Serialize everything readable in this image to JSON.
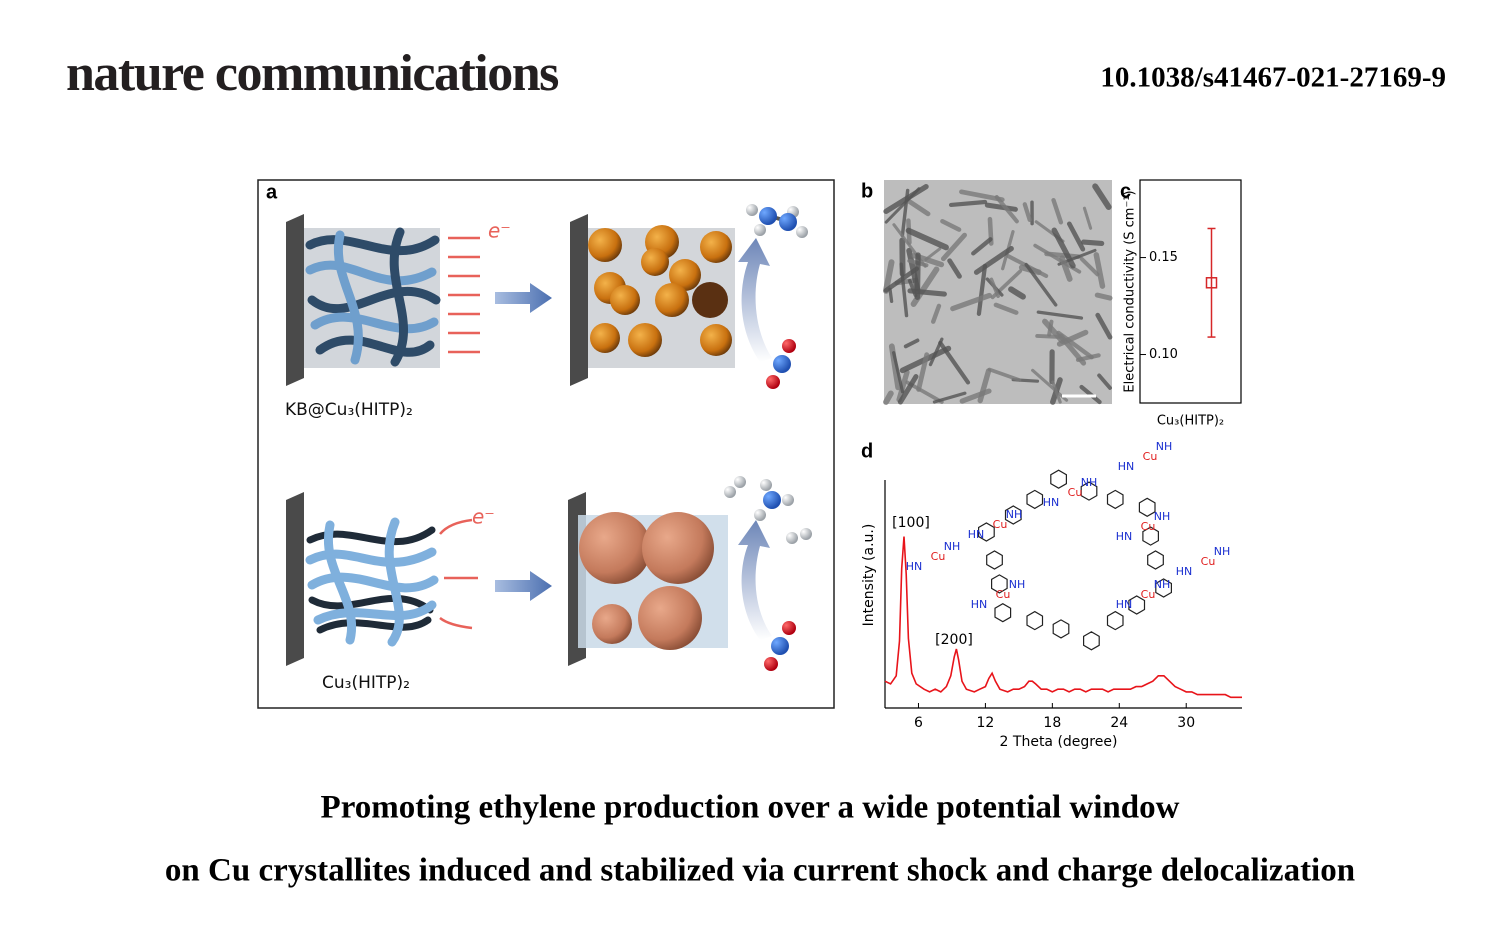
{
  "header": {
    "journal": "nature communications",
    "doi": "10.1038/s41467-021-27169-9"
  },
  "figure": {
    "panel_a": {
      "label": "a",
      "electron_labels": [
        "e⁻",
        "e⁻"
      ],
      "captions": [
        "KB@Cu₃(HITP)₂",
        "Cu₃(HITP)₂"
      ]
    },
    "panel_b": {
      "label": "b"
    },
    "structure": {
      "labels": [
        "Cu",
        "NH",
        "HN",
        "Cu",
        "NH",
        "HN",
        "Cu",
        "NH",
        "HN",
        "Cu",
        "NH",
        "HN",
        "Cu",
        "NH",
        "HN",
        "Cu",
        "NH",
        "HN",
        "Cu",
        "NH",
        "HN",
        "Cu",
        "NH",
        "HN"
      ]
    }
  },
  "chart_data": [
    {
      "type": "errorbar",
      "panel": "c",
      "ylabel": "Electrical conductivity (S cm⁻¹)",
      "categories": [
        "Cu₃(HITP)₂"
      ],
      "values": [
        0.137
      ],
      "errors": [
        0.028
      ],
      "color": "#d62728",
      "ylim": [
        0.075,
        0.19
      ],
      "yticks": [
        {
          "value": 0.1,
          "label": "0.10"
        },
        {
          "value": 0.15,
          "label": "0.15"
        }
      ]
    },
    {
      "type": "line",
      "panel": "d",
      "xlabel": "2 Theta (degree)",
      "ylabel": "Intensity (a.u.)",
      "annotations": [
        "[100]",
        "[200]"
      ],
      "color": "#e8141a",
      "x": [
        3.0,
        3.5,
        4.0,
        4.3,
        4.5,
        4.7,
        4.9,
        5.1,
        5.4,
        5.8,
        6.5,
        7.0,
        7.5,
        8.0,
        8.5,
        8.9,
        9.2,
        9.4,
        9.6,
        9.9,
        10.3,
        11.0,
        11.5,
        12.0,
        12.3,
        12.6,
        12.9,
        13.3,
        14.0,
        14.5,
        15.0,
        15.5,
        15.9,
        16.2,
        16.5,
        17.0,
        17.5,
        18.0,
        18.5,
        19.0,
        19.5,
        20.0,
        20.5,
        21.0,
        21.5,
        22.0,
        22.5,
        23.0,
        23.5,
        24.0,
        24.5,
        25.0,
        25.5,
        26.0,
        26.5,
        27.0,
        27.5,
        28.0,
        28.5,
        29.0,
        29.5,
        30.0,
        30.5,
        31.0,
        31.5,
        32.0,
        32.5,
        33.0,
        33.5,
        34.0,
        34.5,
        35.0
      ],
      "values": [
        0.1,
        0.09,
        0.12,
        0.25,
        0.52,
        0.64,
        0.5,
        0.26,
        0.13,
        0.09,
        0.07,
        0.06,
        0.07,
        0.06,
        0.08,
        0.12,
        0.19,
        0.22,
        0.18,
        0.1,
        0.07,
        0.06,
        0.07,
        0.08,
        0.11,
        0.13,
        0.1,
        0.07,
        0.06,
        0.07,
        0.07,
        0.08,
        0.1,
        0.1,
        0.09,
        0.07,
        0.07,
        0.06,
        0.07,
        0.07,
        0.06,
        0.07,
        0.07,
        0.06,
        0.07,
        0.07,
        0.07,
        0.06,
        0.07,
        0.07,
        0.07,
        0.07,
        0.08,
        0.08,
        0.09,
        0.1,
        0.12,
        0.12,
        0.1,
        0.08,
        0.07,
        0.06,
        0.06,
        0.05,
        0.05,
        0.05,
        0.05,
        0.05,
        0.05,
        0.04,
        0.04,
        0.04
      ],
      "xlim": [
        3,
        35
      ],
      "ylim": [
        0,
        1
      ],
      "xticks": [
        6,
        12,
        18,
        24,
        30
      ]
    }
  ],
  "title": {
    "lines": [
      "Promoting ethylene production over a wide potential window",
      "on Cu crystallites induced and stabilized via current shock and charge delocalization"
    ]
  }
}
